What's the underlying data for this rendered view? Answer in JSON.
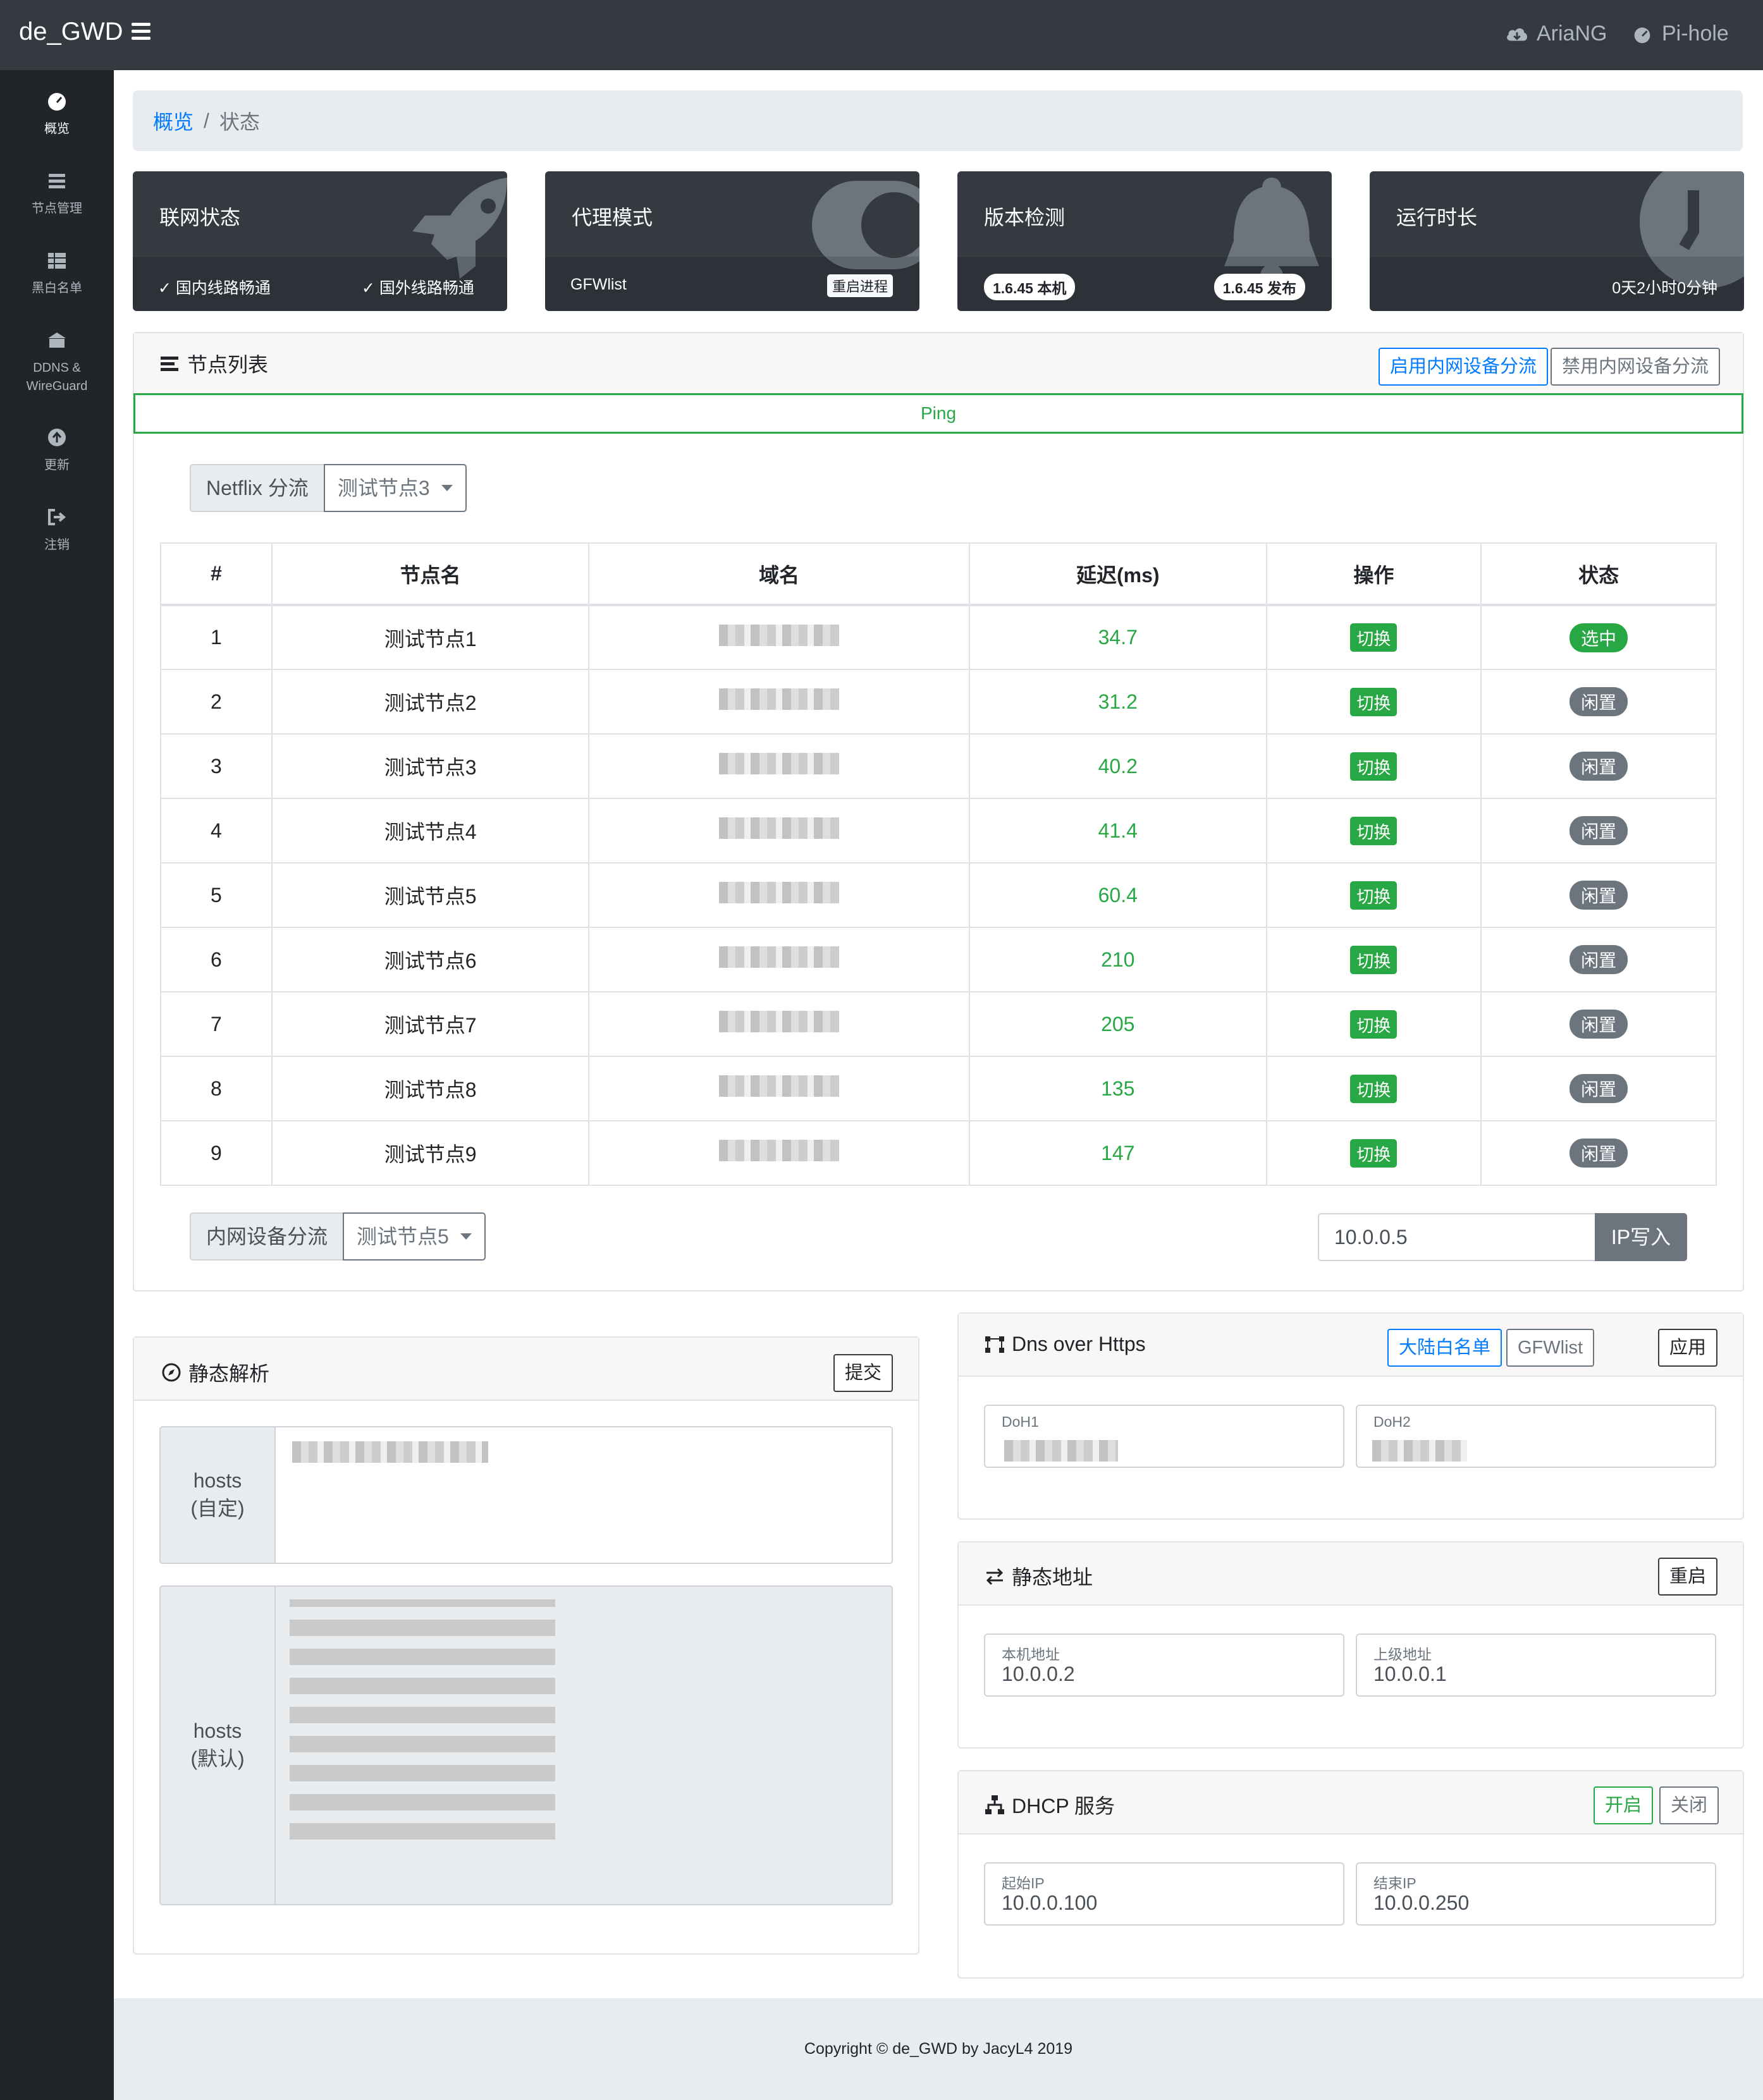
{
  "topbar": {
    "brand": "de_GWD",
    "links": [
      {
        "label": "AriaNG",
        "icon": "cloud-download-icon"
      },
      {
        "label": "Pi-hole",
        "icon": "dashboard-icon"
      }
    ]
  },
  "sidebar": {
    "items": [
      {
        "label": "概览",
        "icon": "dashboard-icon"
      },
      {
        "label": "节点管理",
        "icon": "list-icon"
      },
      {
        "label": "黑白名单",
        "icon": "table-icon"
      },
      {
        "label": "DDNS &",
        "label2": "WireGuard",
        "icon": "building-icon"
      },
      {
        "label": "更新",
        "icon": "arrow-up-circle-icon"
      },
      {
        "label": "注销",
        "icon": "sign-out-icon"
      }
    ]
  },
  "breadcrumb": {
    "home": "概览",
    "sep": "/",
    "current": "状态"
  },
  "cards": {
    "network": {
      "title": "联网状态",
      "domestic": "✓ 国内线路畅通",
      "foreign": "✓ 国外线路畅通"
    },
    "proxy": {
      "title": "代理模式",
      "mode": "GFWlist",
      "restart": "重启进程"
    },
    "version": {
      "title": "版本检测",
      "local": "1.6.45 本机",
      "release": "1.6.45 发布"
    },
    "uptime": {
      "title": "运行时长",
      "value": "0天2小时0分钟"
    }
  },
  "nodes_panel": {
    "title": "节点列表",
    "enable_btn": "启用内网设备分流",
    "disable_btn": "禁用内网设备分流",
    "ping": "Ping",
    "netflix_label": "Netflix 分流",
    "netflix_value": "测试节点3",
    "columns": [
      "#",
      "节点名",
      "域名",
      "延迟(ms)",
      "操作",
      "状态"
    ],
    "rows": [
      {
        "no": "1",
        "name": "测试节点1",
        "latency": "34.7",
        "action": "切换",
        "status": "选中"
      },
      {
        "no": "2",
        "name": "测试节点2",
        "latency": "31.2",
        "action": "切换",
        "status": "闲置"
      },
      {
        "no": "3",
        "name": "测试节点3",
        "latency": "40.2",
        "action": "切换",
        "status": "闲置"
      },
      {
        "no": "4",
        "name": "测试节点4",
        "latency": "41.4",
        "action": "切换",
        "status": "闲置"
      },
      {
        "no": "5",
        "name": "测试节点5",
        "latency": "60.4",
        "action": "切换",
        "status": "闲置"
      },
      {
        "no": "6",
        "name": "测试节点6",
        "latency": "210",
        "action": "切换",
        "status": "闲置"
      },
      {
        "no": "7",
        "name": "测试节点7",
        "latency": "205",
        "action": "切换",
        "status": "闲置"
      },
      {
        "no": "8",
        "name": "测试节点8",
        "latency": "135",
        "action": "切换",
        "status": "闲置"
      },
      {
        "no": "9",
        "name": "测试节点9",
        "latency": "147",
        "action": "切换",
        "status": "闲置"
      }
    ],
    "lan_label": "内网设备分流",
    "lan_value": "测试节点5",
    "ip_value": "10.0.0.5",
    "ip_btn": "IP写入"
  },
  "static_resolve": {
    "title": "静态解析",
    "submit": "提交",
    "hosts_custom_1": "hosts",
    "hosts_custom_2": "(自定)",
    "hosts_default_1": "hosts",
    "hosts_default_2": "(默认)"
  },
  "doh": {
    "title": "Dns over Https",
    "btn_china": "大陆白名单",
    "btn_gfw": "GFWlist",
    "apply": "应用",
    "doh1_label": "DoH1",
    "doh2_label": "DoH2"
  },
  "static_addr": {
    "title": "静态地址",
    "restart": "重启",
    "local_label": "本机地址",
    "local_value": "10.0.0.2",
    "upstream_label": "上级地址",
    "upstream_value": "10.0.0.1"
  },
  "dhcp": {
    "title": "DHCP 服务",
    "on": "开启",
    "off": "关闭",
    "start_label": "起始IP",
    "start_value": "10.0.0.100",
    "end_label": "结束IP",
    "end_value": "10.0.0.250"
  },
  "footer": {
    "text": "Copyright © de_GWD by JacyL4 2019"
  },
  "colors": {
    "topbar": "#343a40",
    "sidebar": "#212529",
    "success": "#28a745",
    "primary": "#007bff",
    "secondary": "#6c757d"
  }
}
